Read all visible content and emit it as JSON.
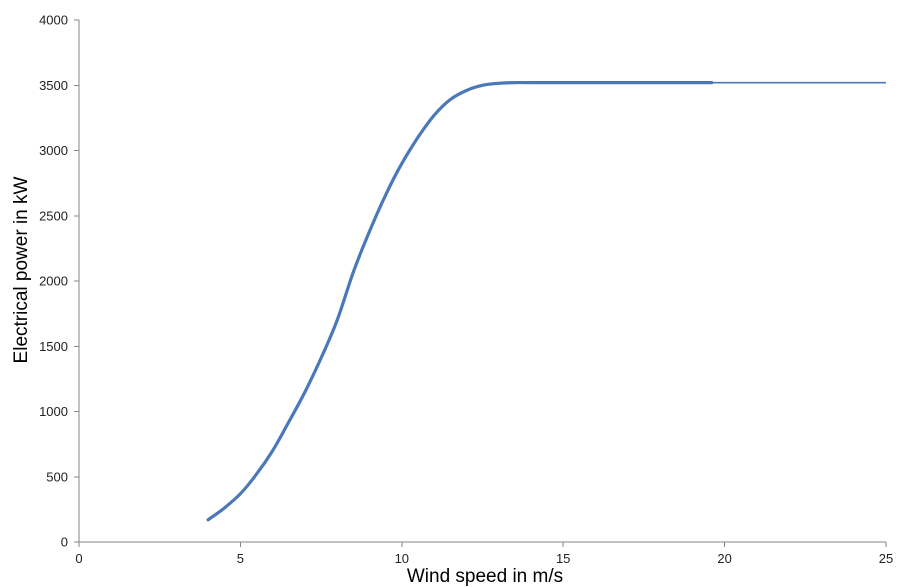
{
  "chart_data": {
    "type": "line",
    "title": "",
    "xlabel": "Wind speed  in m/s",
    "ylabel": "Electrical power in kW",
    "xlim": [
      0,
      25
    ],
    "ylim": [
      0,
      4000
    ],
    "x_ticks": [
      0,
      5,
      10,
      15,
      20,
      25
    ],
    "y_ticks": [
      0,
      500,
      1000,
      1500,
      2000,
      2500,
      3000,
      3500,
      4000
    ],
    "grid": false,
    "legend": "none",
    "series": [
      {
        "color": "#4a78b8",
        "points": [
          [
            4,
            170
          ],
          [
            4.5,
            260
          ],
          [
            5,
            370
          ],
          [
            5.5,
            520
          ],
          [
            6,
            700
          ],
          [
            6.5,
            920
          ],
          [
            7,
            1150
          ],
          [
            7.5,
            1410
          ],
          [
            8,
            1700
          ],
          [
            8.5,
            2070
          ],
          [
            9,
            2380
          ],
          [
            9.5,
            2660
          ],
          [
            10,
            2900
          ],
          [
            10.5,
            3100
          ],
          [
            11,
            3270
          ],
          [
            11.5,
            3390
          ],
          [
            12,
            3460
          ],
          [
            12.5,
            3500
          ],
          [
            13,
            3515
          ],
          [
            13.5,
            3520
          ],
          [
            14,
            3520
          ],
          [
            16,
            3520
          ],
          [
            18,
            3520
          ],
          [
            19.6,
            3520
          ]
        ],
        "flat_extension": [
          [
            19.6,
            3520
          ],
          [
            25,
            3520
          ]
        ]
      }
    ]
  }
}
